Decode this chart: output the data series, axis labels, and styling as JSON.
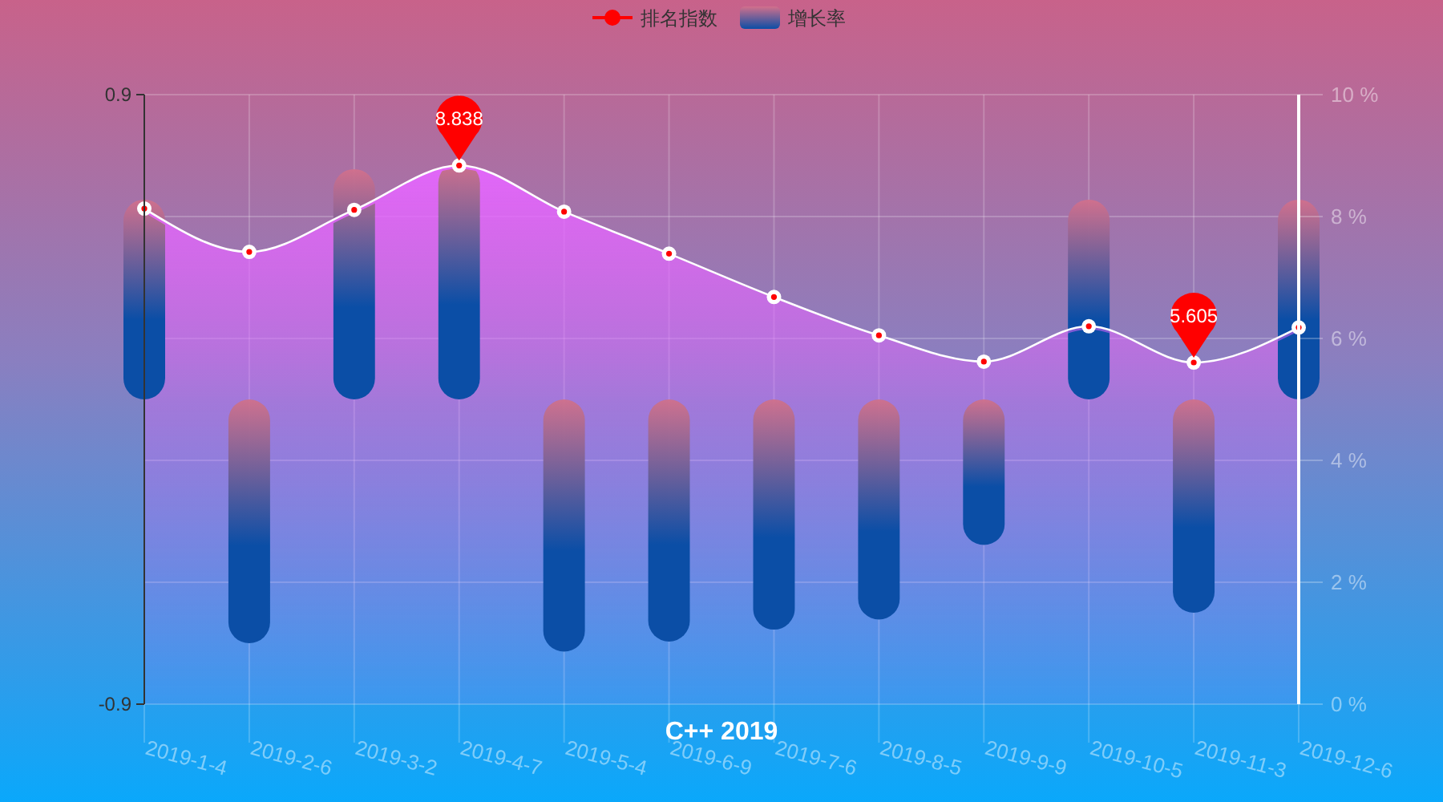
{
  "chart_data": {
    "type": "bar",
    "title": "C++ 2019",
    "categories": [
      "2019-1-4",
      "2019-2-6",
      "2019-3-2",
      "2019-4-7",
      "2019-5-4",
      "2019-6-9",
      "2019-7-6",
      "2019-8-5",
      "2019-9-9",
      "2019-10-5",
      "2019-11-3",
      "2019-12-6"
    ],
    "series": [
      {
        "name": "排名指数",
        "type": "area",
        "axis": "y2",
        "color": "#ff0000",
        "values": [
          8.13,
          7.42,
          8.11,
          8.838,
          8.08,
          7.39,
          6.68,
          6.05,
          5.62,
          6.2,
          5.605,
          6.18
        ],
        "value_labels": [
          null,
          null,
          null,
          "8.838",
          null,
          null,
          null,
          null,
          null,
          null,
          "5.605",
          null
        ]
      },
      {
        "name": "增长率",
        "color": "#0b4ea6",
        "values": [
          0.59,
          -0.72,
          0.68,
          0.7,
          -0.745,
          -0.715,
          -0.68,
          -0.65,
          -0.43,
          0.59,
          -0.63,
          0.59
        ]
      }
    ],
    "ylim": [
      -0.9,
      0.9
    ],
    "yticks": [
      -0.9,
      0.9
    ],
    "y2lim": [
      0,
      10
    ],
    "y2ticks": [
      {
        "value": 0,
        "label": "0 %"
      },
      {
        "value": 2,
        "label": "2 %"
      },
      {
        "value": 4,
        "label": "4 %"
      },
      {
        "value": 6,
        "label": "6 %"
      },
      {
        "value": 8,
        "label": "8 %"
      },
      {
        "value": 10,
        "label": "10 %"
      }
    ],
    "grid": true,
    "legend": "top",
    "marker": "circle"
  }
}
